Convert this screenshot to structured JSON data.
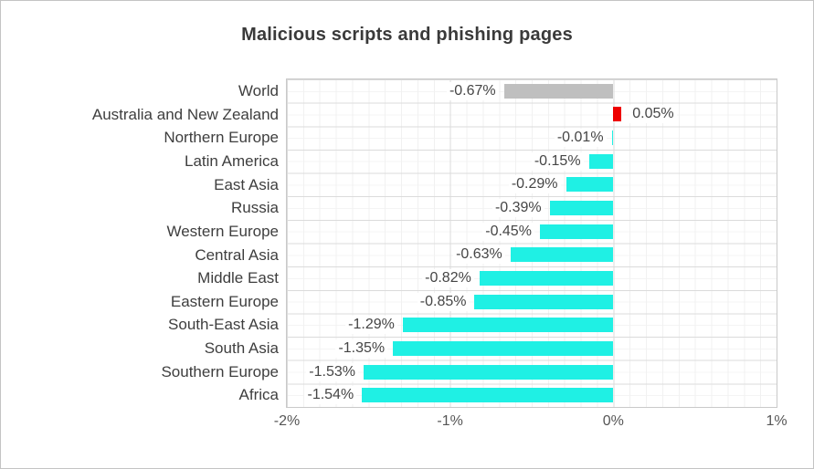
{
  "title": "Malicious scripts and phishing pages",
  "chart_data": {
    "type": "bar",
    "orientation": "horizontal",
    "title": "Malicious scripts and phishing pages",
    "categories": [
      "World",
      "Australia and New Zealand",
      "Northern Europe",
      "Latin America",
      "East Asia",
      "Russia",
      "Western Europe",
      "Central Asia",
      "Middle East",
      "Eastern Europe",
      "South-East Asia",
      "South Asia",
      "Southern Europe",
      "Africa"
    ],
    "values": [
      -0.67,
      0.05,
      -0.01,
      -0.15,
      -0.29,
      -0.39,
      -0.45,
      -0.63,
      -0.82,
      -0.85,
      -1.29,
      -1.35,
      -1.53,
      -1.54
    ],
    "data_labels": [
      "-0.67%",
      "0.05%",
      "-0.01%",
      "-0.15%",
      "-0.29%",
      "-0.39%",
      "-0.45%",
      "-0.63%",
      "-0.82%",
      "-0.85%",
      "-1.29%",
      "-1.35%",
      "-1.53%",
      "-1.54%"
    ],
    "bar_colors": [
      "#bfbfbf",
      "#ee0000",
      "#1ff0e4",
      "#1ff0e4",
      "#1ff0e4",
      "#1ff0e4",
      "#1ff0e4",
      "#1ff0e4",
      "#1ff0e4",
      "#1ff0e4",
      "#1ff0e4",
      "#1ff0e4",
      "#1ff0e4",
      "#1ff0e4"
    ],
    "xlim": [
      -2,
      1
    ],
    "x_tick_labels": [
      "-2%",
      "-1%",
      "0%",
      "1%"
    ],
    "x_tick_values": [
      -2,
      -1,
      0,
      1
    ],
    "ylabel": "",
    "xlabel": "",
    "grid": "major vertical every 1% and horizontal per row, minor every 0.1% and half-row, light gray",
    "legend": "none",
    "colors": {
      "bar_default": "#1ff0e4",
      "bar_world": "#bfbfbf",
      "bar_positive": "#ee0000",
      "grid_major": "#dbdbdb",
      "grid_minor": "#f2f2f2",
      "plot_border": "#c9c9c9",
      "text": "#3e3e3e"
    }
  }
}
